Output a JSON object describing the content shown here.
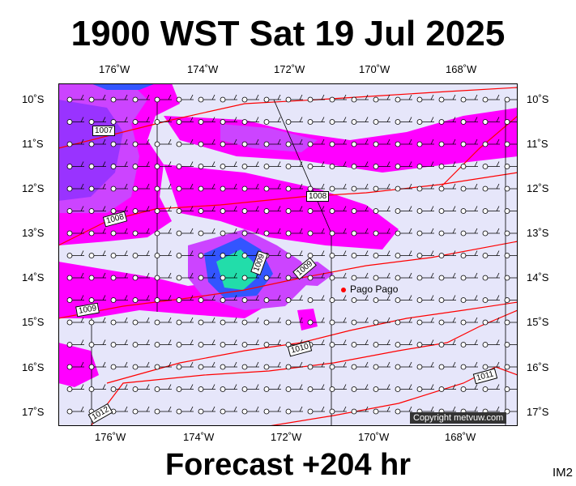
{
  "title": "1900 WST Sat 19 Jul 2025",
  "footer": "Forecast +204 hr",
  "image_code": "IM2",
  "copyright": "Copyright metvuw.com",
  "place_label": "Pago Pago",
  "lon_labels_top": [
    "176˚W",
    "174˚W",
    "172˚W",
    "170˚W",
    "168˚W"
  ],
  "lon_labels_bottom": [
    "176˚W",
    "174˚W",
    "172˚W",
    "170˚W",
    "168˚W"
  ],
  "lat_labels_left": [
    "10˚S",
    "11˚S",
    "12˚S",
    "13˚S",
    "14˚S",
    "15˚S",
    "16˚S",
    "17˚S"
  ],
  "lat_labels_right": [
    "10˚S",
    "11˚S",
    "12˚S",
    "13˚S",
    "14˚S",
    "15˚S",
    "16˚S",
    "17˚S"
  ],
  "isobar_labels": [
    "1007",
    "1008",
    "1008",
    "1009",
    "1009",
    "1009",
    "1010",
    "1011",
    "1012"
  ],
  "colors": {
    "background_fill": "#e6e6fa",
    "rain_light": "#ff00ff",
    "rain_mid": "#cc44ff",
    "rain_heavy": "#7a2cff",
    "rain_core": "#3355ff",
    "rain_peak": "#22ddaa",
    "isobar": "#ff0000"
  }
}
